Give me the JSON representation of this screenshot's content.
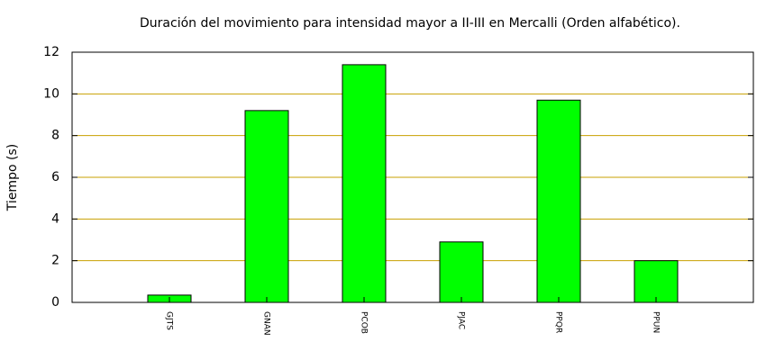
{
  "chart_data": {
    "type": "bar",
    "title": "Duración del movimiento para intensidad mayor a II-III en Mercalli (Orden alfabético).",
    "ylabel": "Tiempo (s)",
    "categories": [
      "GJTS",
      "GNAN",
      "PCOB",
      "PJAC",
      "PPQR",
      "PPUN"
    ],
    "values": [
      0.35,
      9.2,
      11.4,
      2.9,
      9.7,
      2.0
    ],
    "color": "#00ff00",
    "ylim": [
      0,
      12
    ],
    "yticks": [
      0,
      2,
      4,
      6,
      8,
      10,
      12
    ],
    "grid": true,
    "grid_color": "#c8a000"
  }
}
